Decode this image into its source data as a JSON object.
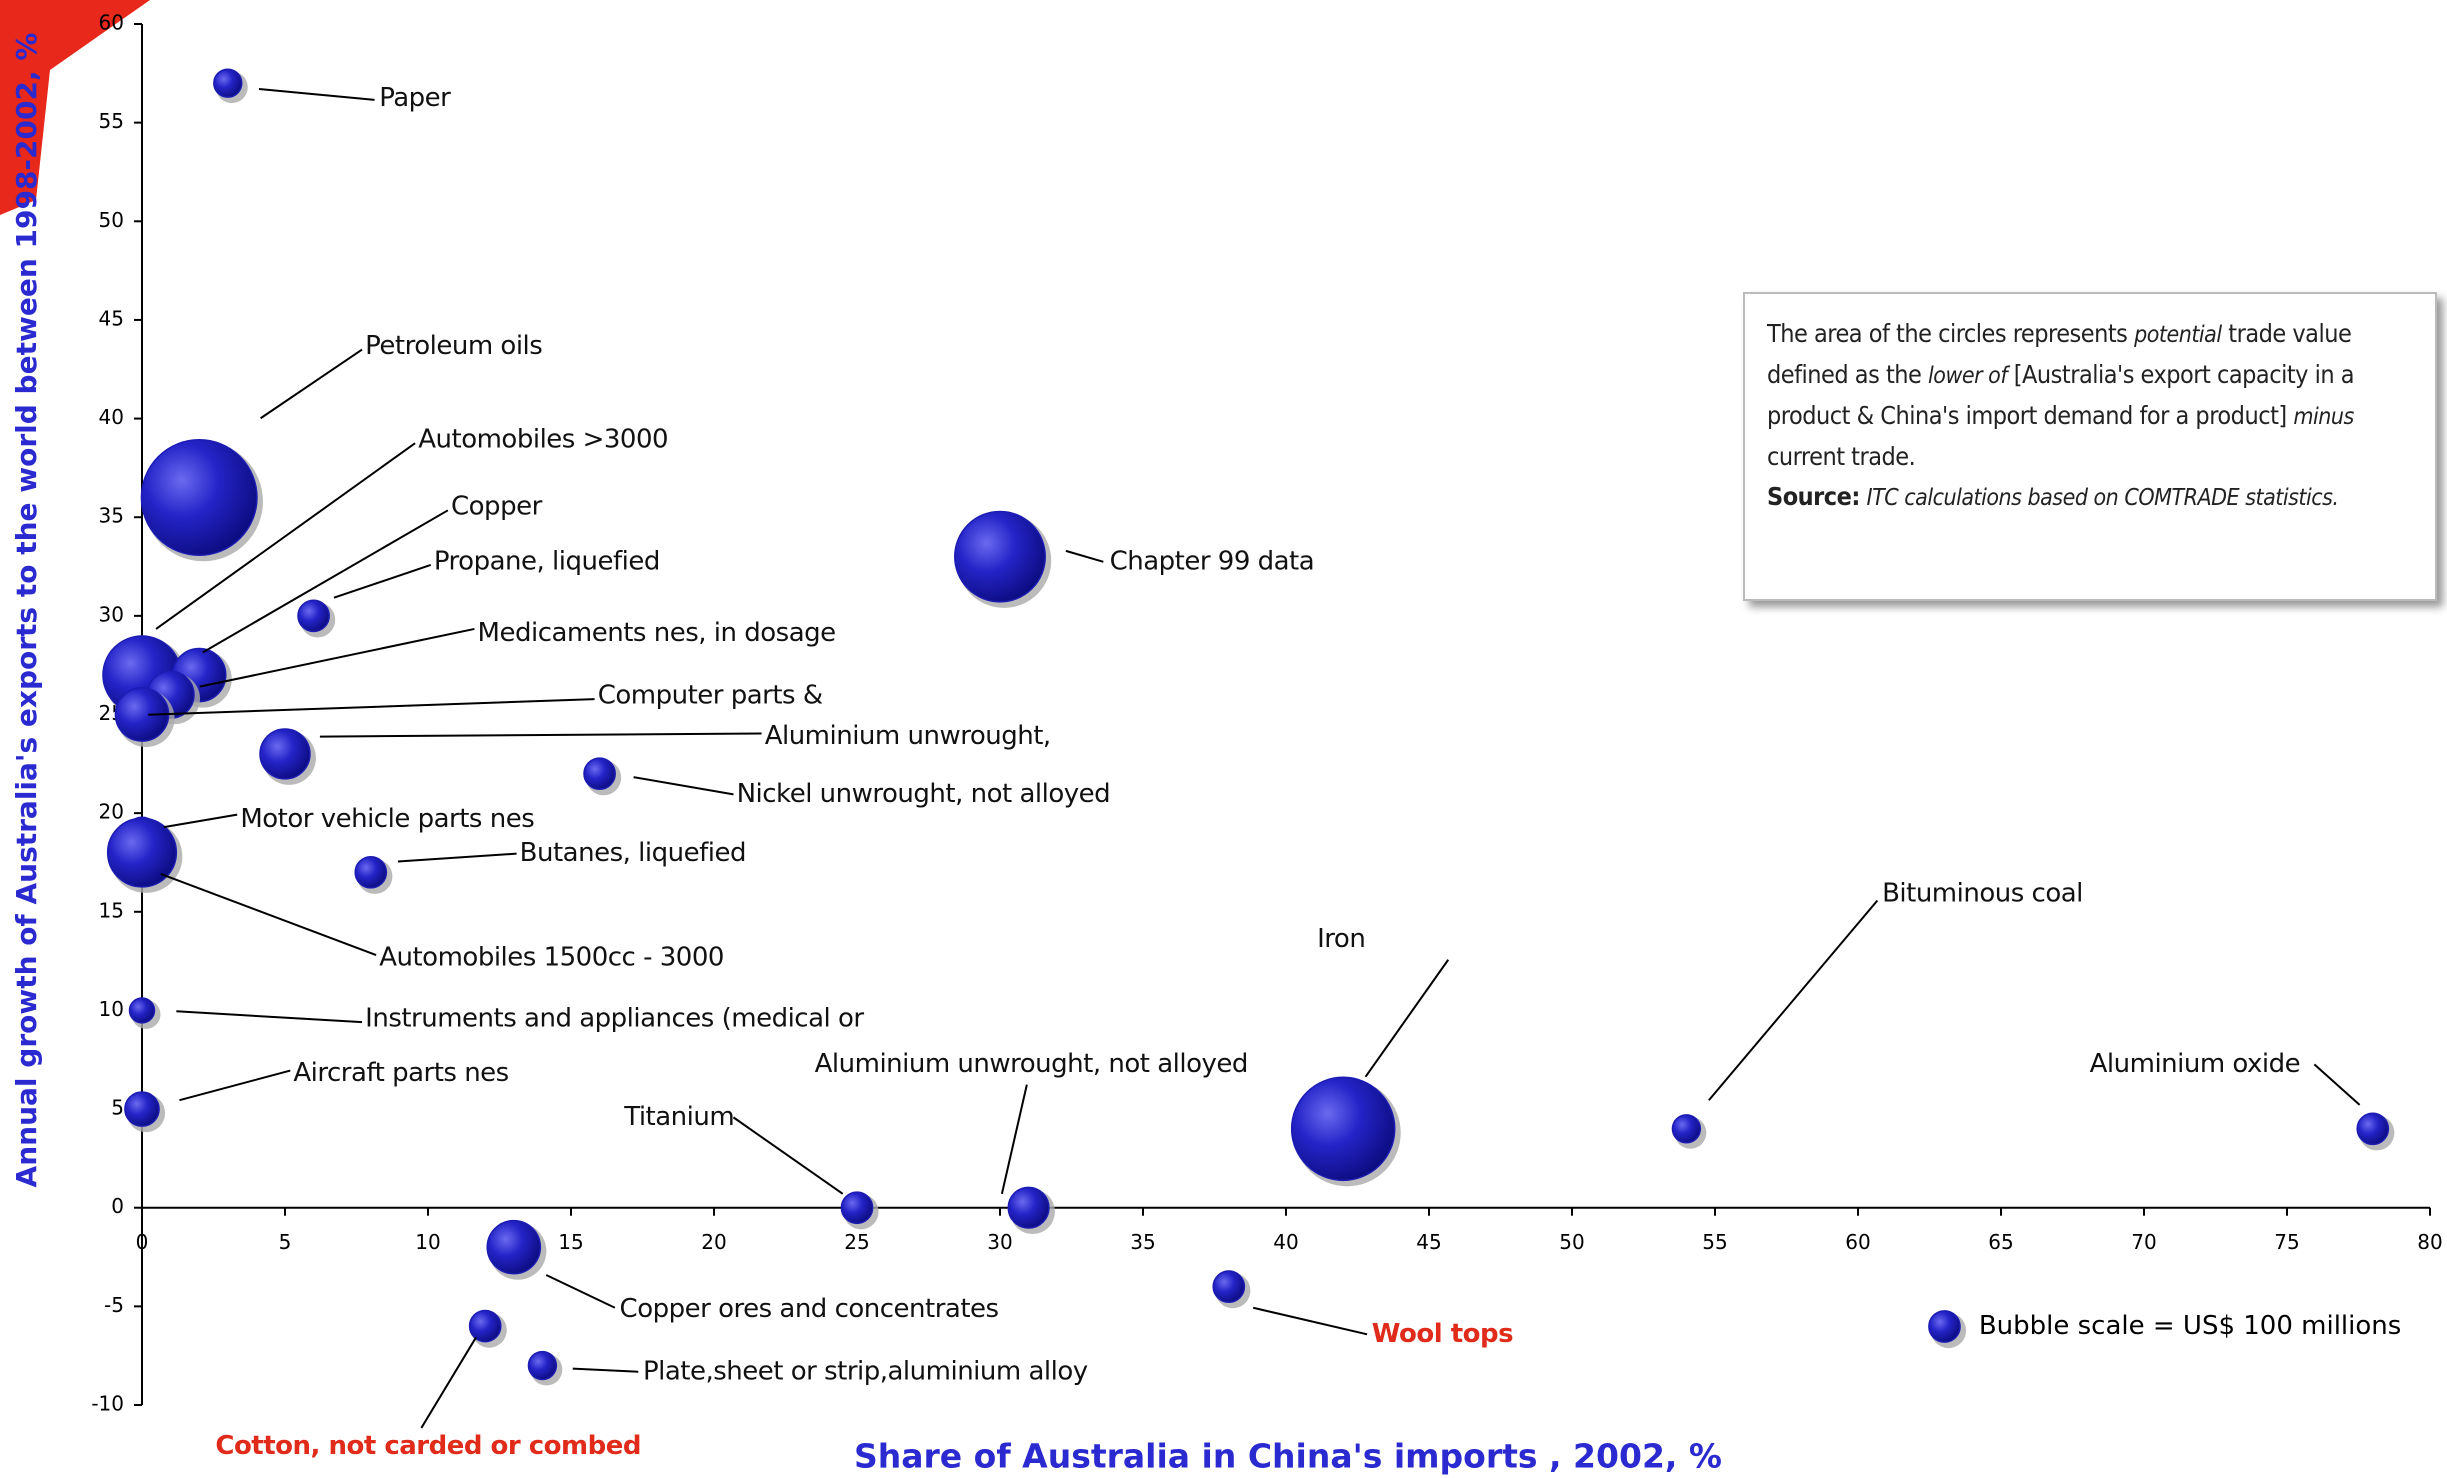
{
  "chart_data": {
    "type": "bubble",
    "x_label": "Share of Australia in China's imports , 2002, %",
    "y_label": "Annual growth of Australia's exports to the world between 1998-2002, %",
    "axis_label_color": "#2a2ad0",
    "color": "#1c1cb4",
    "xlim": [
      0,
      80
    ],
    "ylim": [
      -10,
      60
    ],
    "xticks": [
      0,
      5,
      10,
      15,
      20,
      25,
      30,
      35,
      40,
      45,
      50,
      55,
      60,
      65,
      70,
      75,
      80
    ],
    "yticks": [
      -10,
      -5,
      0,
      5,
      10,
      15,
      20,
      25,
      30,
      35,
      40,
      45,
      50,
      55,
      60
    ],
    "points": [
      {
        "label": "Paper",
        "x": 3,
        "y": 57,
        "size": 80
      },
      {
        "label": "Petroleum oils",
        "x": 2,
        "y": 36,
        "size": 1370
      },
      {
        "label": "Automobiles >3000",
        "x": 0,
        "y": 27,
        "size": 625
      },
      {
        "label": "Copper",
        "x": 2,
        "y": 27,
        "size": 290
      },
      {
        "label": "Propane, liquefied",
        "x": 6,
        "y": 30,
        "size": 100
      },
      {
        "label": "Medicaments nes, in dosage",
        "x": 1,
        "y": 26,
        "size": 225
      },
      {
        "label": "Computer parts &",
        "x": 0,
        "y": 25,
        "size": 290
      },
      {
        "label": "Aluminium unwrought,",
        "x": 5,
        "y": 23,
        "size": 256
      },
      {
        "label": "Nickel unwrought, not alloyed",
        "x": 16,
        "y": 22,
        "size": 100
      },
      {
        "label": "Motor vehicle parts nes",
        "x": 0,
        "y": 19,
        "size": 100
      },
      {
        "label": "Butanes, liquefied",
        "x": 8,
        "y": 17,
        "size": 100
      },
      {
        "label": "Automobiles 1500cc - 3000",
        "x": 0,
        "y": 18,
        "size": 484
      },
      {
        "label": "Instruments and appliances (medical or",
        "x": 0,
        "y": 10,
        "size": 64
      },
      {
        "label": "Aircraft parts nes",
        "x": 0,
        "y": 5,
        "size": 120
      },
      {
        "label": "Titanium",
        "x": 25,
        "y": 0,
        "size": 100
      },
      {
        "label": "Aluminium unwrought, not alloyed",
        "x": 31,
        "y": 0,
        "size": 170
      },
      {
        "label": "Iron",
        "x": 42,
        "y": 4,
        "size": 1090
      },
      {
        "label": "Bituminous coal",
        "x": 54,
        "y": 4,
        "size": 80
      },
      {
        "label": "Aluminium oxide",
        "x": 78,
        "y": 4,
        "size": 100
      },
      {
        "label": "Chapter 99 data",
        "x": 30,
        "y": 33,
        "size": 840
      },
      {
        "label": "Copper ores and concentrates",
        "x": 13,
        "y": -2,
        "size": 290
      },
      {
        "label": "Wool tops",
        "x": 38,
        "y": -4,
        "size": 100,
        "label_color": "#e02a1a"
      },
      {
        "label": "Cotton, not carded or combed",
        "x": 12,
        "y": -6,
        "size": 100,
        "label_color": "#e02a1a"
      },
      {
        "label": "Plate,sheet or strip,aluminium alloy",
        "x": 14,
        "y": -8,
        "size": 80
      }
    ],
    "bubble_scale": {
      "label": "Bubble scale = US$ 100 millions",
      "size": 100
    },
    "note": [
      [
        {
          "text": "The area of the circles represents",
          "style": "normal"
        },
        {
          "text": "potential",
          "style": "italic"
        },
        {
          "text": "trade value defined as the",
          "style": "normal"
        },
        {
          "text": "lower of",
          "style": "italic"
        },
        {
          "text": "[Australia's export capacity in a product & China's import demand for a product]",
          "style": "normal"
        },
        {
          "text": "minus",
          "style": "italic"
        },
        {
          "text": "current trade.",
          "style": "normal"
        }
      ],
      [
        {
          "text": "Source:",
          "style": "bold"
        },
        {
          "text": "ITC calculations based on COMTRADE statistics.",
          "style": "italic"
        }
      ]
    ]
  }
}
